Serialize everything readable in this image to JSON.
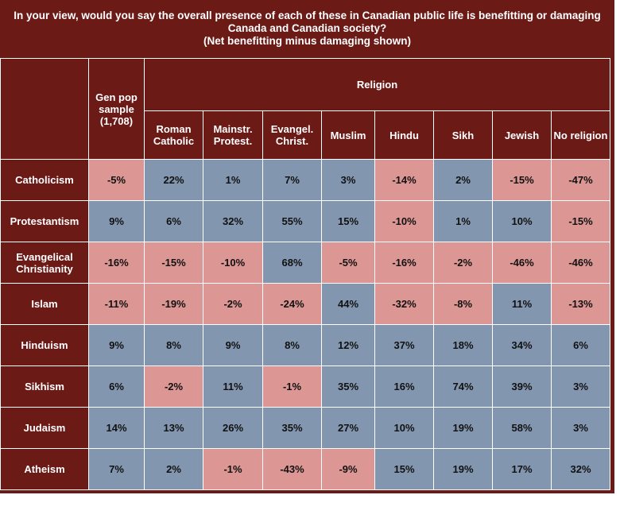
{
  "title": {
    "line1": "In your view, would you say the overall presence of each of these in Canadian public life is benefitting or damaging",
    "line2": "Canada and Canadian society?",
    "line3": "(Net benefitting minus damaging shown)"
  },
  "colors": {
    "header_bg": "#6b1a16",
    "positive": "#8396b0",
    "negative": "#dc9694"
  },
  "chart_data": {
    "type": "table",
    "group_header": "Religion",
    "columns": [
      "Gen pop sample (1,708)",
      "Roman Catholic",
      "Mainstr. Protest.",
      "Evangel. Christ.",
      "Muslim",
      "Hindu",
      "Sikh",
      "Jewish",
      "No religion"
    ],
    "rows": [
      {
        "label": "Catholicism",
        "values": [
          -5,
          22,
          1,
          7,
          3,
          -14,
          2,
          -15,
          -47
        ]
      },
      {
        "label": "Protestantism",
        "values": [
          9,
          6,
          32,
          55,
          15,
          -10,
          1,
          10,
          -15
        ]
      },
      {
        "label": "Evangelical Christianity",
        "values": [
          -16,
          -15,
          -10,
          68,
          -5,
          -16,
          -2,
          -46,
          -46
        ]
      },
      {
        "label": "Islam",
        "values": [
          -11,
          -19,
          -2,
          -24,
          44,
          -32,
          -8,
          11,
          -13
        ]
      },
      {
        "label": "Hinduism",
        "values": [
          9,
          8,
          9,
          8,
          12,
          37,
          18,
          34,
          6
        ]
      },
      {
        "label": "Sikhism",
        "values": [
          6,
          -2,
          11,
          -1,
          35,
          16,
          74,
          39,
          3
        ]
      },
      {
        "label": "Judaism",
        "values": [
          14,
          13,
          26,
          35,
          27,
          10,
          19,
          58,
          3
        ]
      },
      {
        "label": "Atheism",
        "values": [
          7,
          2,
          -1,
          -43,
          -9,
          15,
          19,
          17,
          32
        ]
      }
    ],
    "unit": "%"
  }
}
